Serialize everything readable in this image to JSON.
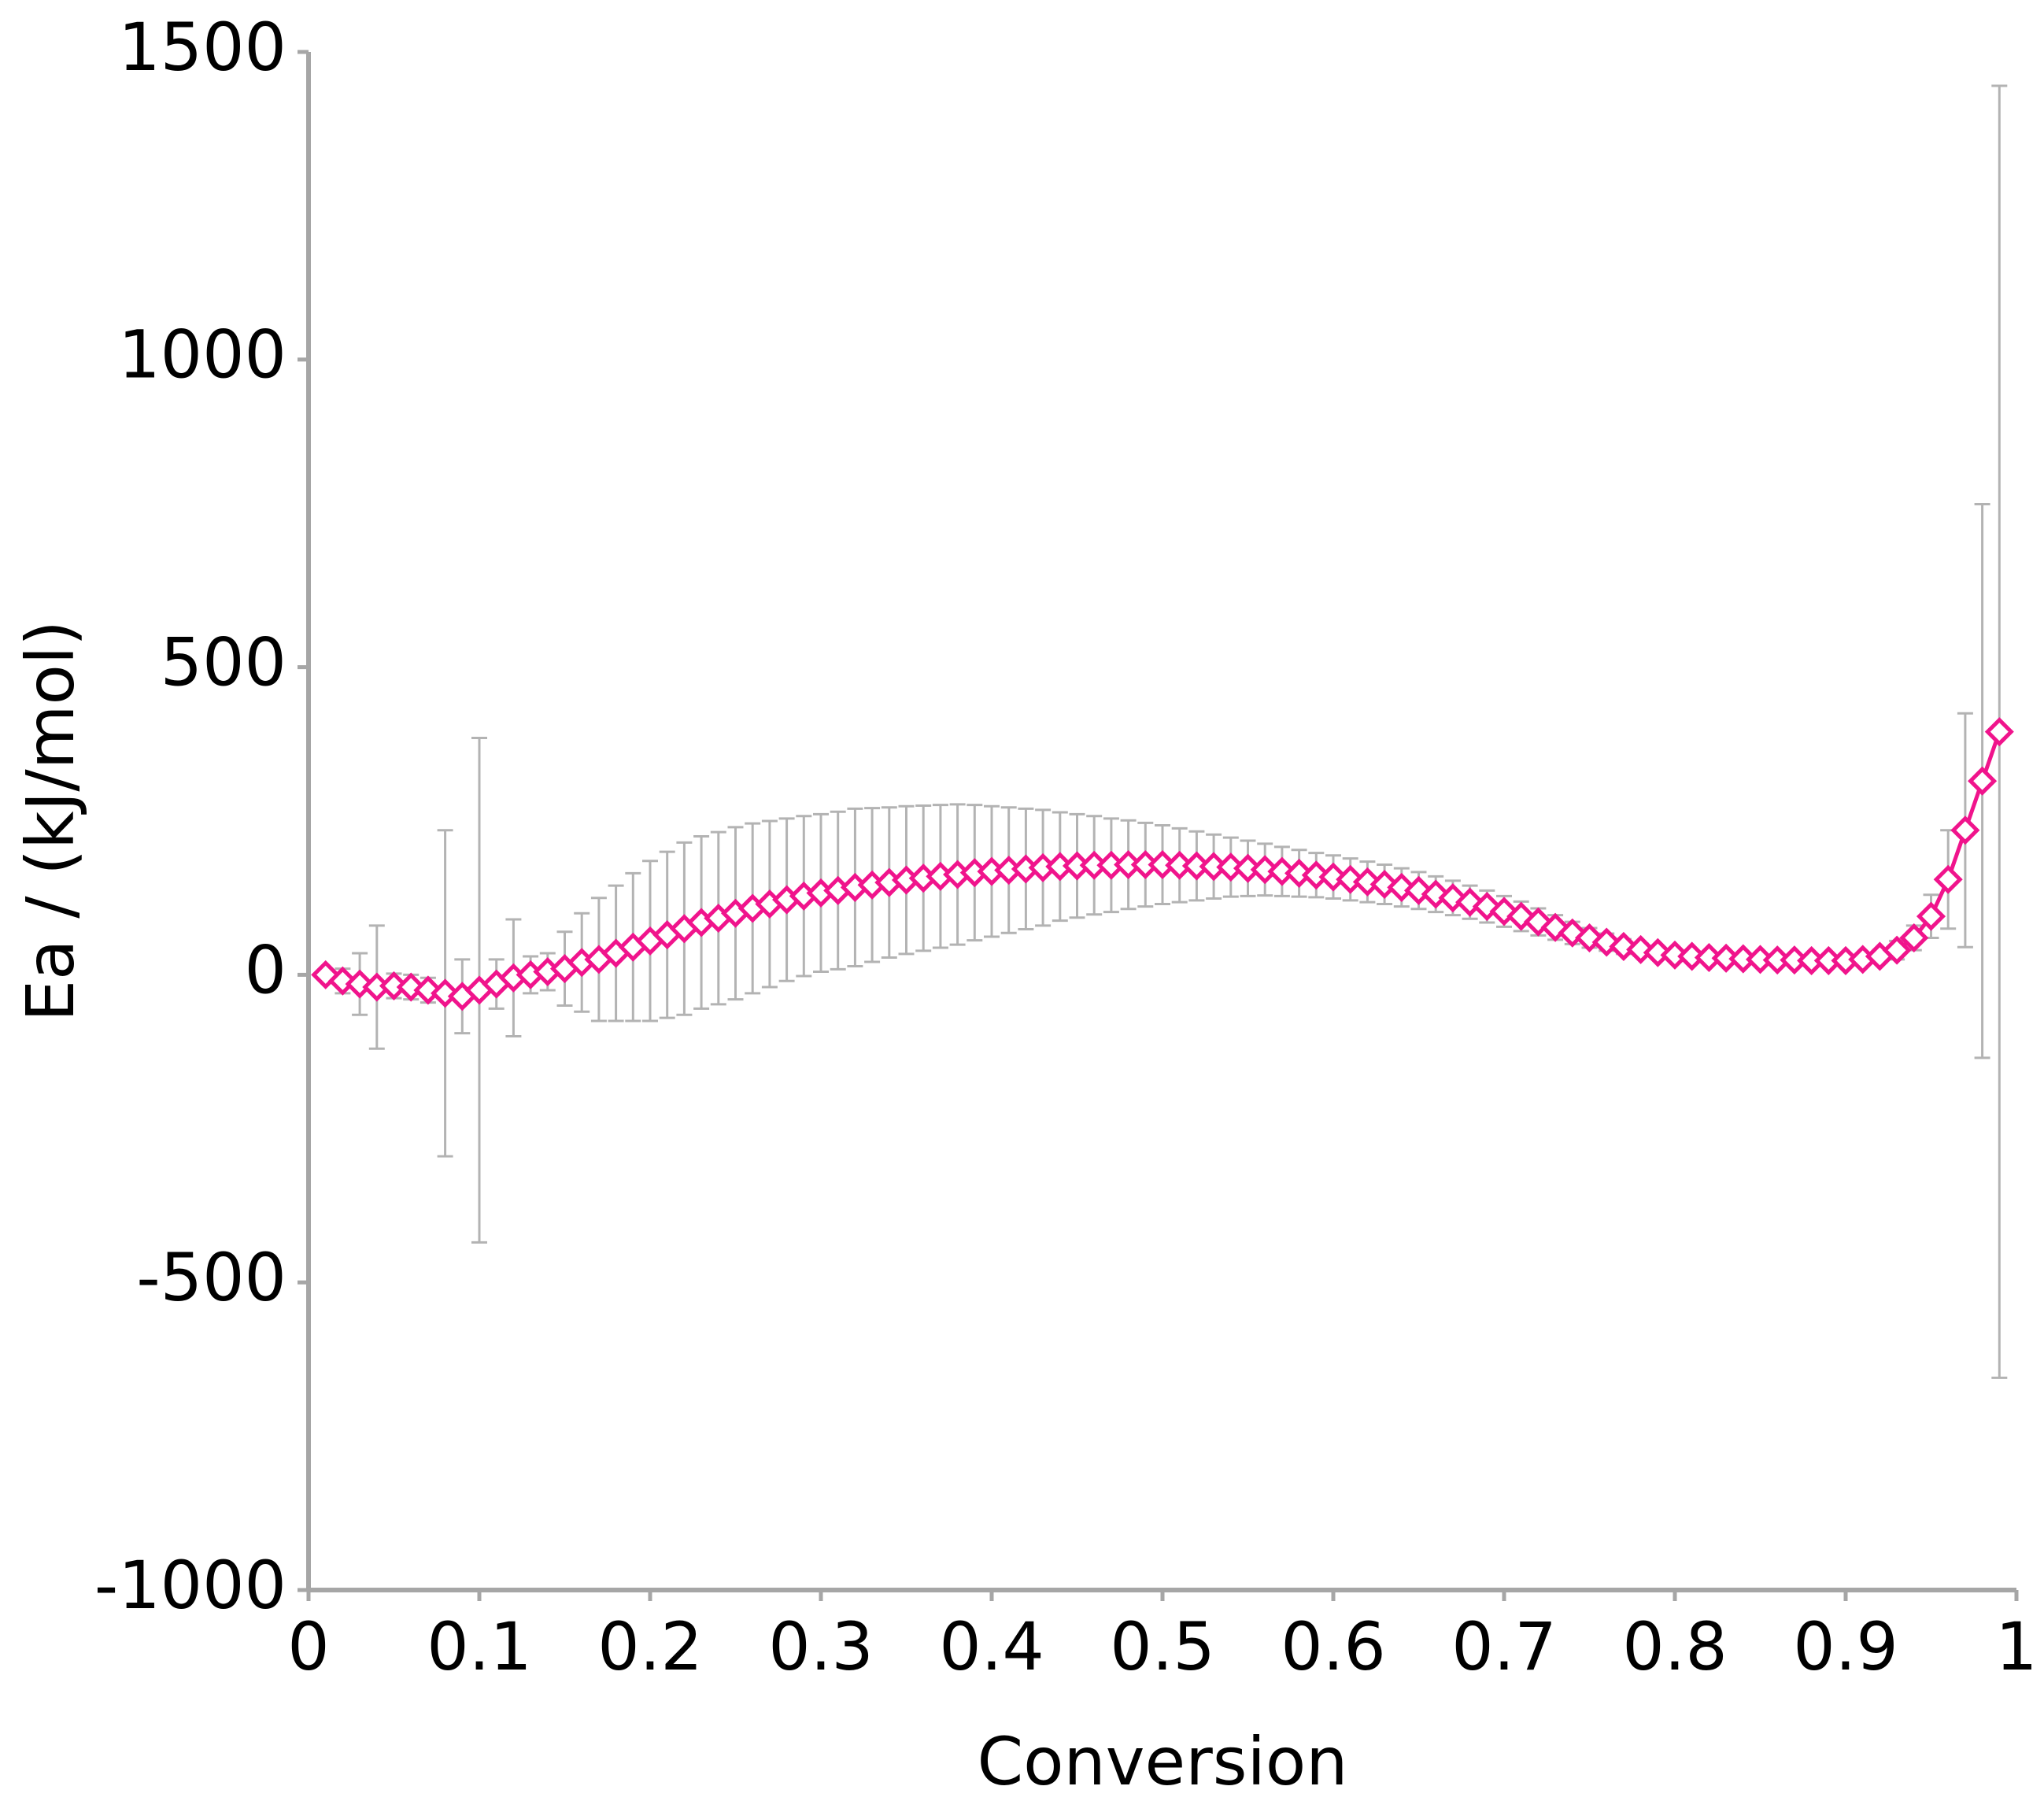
{
  "chart_data": {
    "type": "line",
    "x_label": "Conversion",
    "y_label": "Ea / (kJ/mol)",
    "x": [
      0.01,
      0.02,
      0.03,
      0.04,
      0.05,
      0.06,
      0.07,
      0.08,
      0.09,
      0.1,
      0.11,
      0.12,
      0.13,
      0.14,
      0.15,
      0.16,
      0.17,
      0.18,
      0.19,
      0.2,
      0.21,
      0.22,
      0.23,
      0.24,
      0.25,
      0.26,
      0.27,
      0.28,
      0.29,
      0.3,
      0.31,
      0.32,
      0.33,
      0.34,
      0.35,
      0.36,
      0.37,
      0.38,
      0.39,
      0.4,
      0.41,
      0.42,
      0.43,
      0.44,
      0.45,
      0.46,
      0.47,
      0.48,
      0.49,
      0.5,
      0.51,
      0.52,
      0.53,
      0.54,
      0.55,
      0.56,
      0.57,
      0.58,
      0.59,
      0.6,
      0.61,
      0.62,
      0.63,
      0.64,
      0.65,
      0.66,
      0.67,
      0.68,
      0.69,
      0.7,
      0.71,
      0.72,
      0.73,
      0.74,
      0.75,
      0.76,
      0.77,
      0.78,
      0.79,
      0.8,
      0.81,
      0.82,
      0.83,
      0.84,
      0.85,
      0.86,
      0.87,
      0.88,
      0.89,
      0.9,
      0.91,
      0.92,
      0.93,
      0.94,
      0.95,
      0.96,
      0.97,
      0.98,
      0.99
    ],
    "series": [
      {
        "color": "#f0148c",
        "error_color": "#b3b3b3",
        "values": [
          0,
          -10,
          -15,
          -20,
          -18,
          -20,
          -25,
          -30,
          -35,
          -25,
          -15,
          -5,
          0,
          5,
          10,
          20,
          25,
          35,
          45,
          55,
          65,
          75,
          85,
          92,
          100,
          108,
          115,
          122,
          128,
          133,
          137,
          142,
          146,
          150,
          154,
          157,
          160,
          163,
          166,
          168,
          170,
          172,
          174,
          176,
          177,
          178,
          178,
          179,
          179,
          179,
          178,
          177,
          176,
          175,
          173,
          171,
          168,
          165,
          162,
          159,
          155,
          151,
          147,
          142,
          137,
          131,
          125,
          118,
          111,
          103,
          95,
          86,
          77,
          68,
          60,
          53,
          46,
          41,
          36,
          32,
          30,
          28,
          27,
          26,
          25,
          24,
          24,
          23,
          23,
          23,
          25,
          30,
          40,
          60,
          95,
          155,
          235,
          315,
          395
        ],
        "errors": [
          0,
          20,
          50,
          100,
          20,
          20,
          20,
          265,
          60,
          410,
          40,
          95,
          30,
          30,
          60,
          80,
          100,
          110,
          120,
          130,
          135,
          140,
          140,
          140,
          140,
          138,
          135,
          132,
          130,
          128,
          128,
          128,
          125,
          122,
          120,
          118,
          116,
          114,
          110,
          106,
          102,
          98,
          94,
          88,
          84,
          80,
          76,
          72,
          68,
          64,
          60,
          56,
          52,
          48,
          45,
          42,
          40,
          38,
          36,
          35,
          34,
          33,
          32,
          31,
          30,
          29,
          28,
          27,
          26,
          25,
          24,
          22,
          20,
          18,
          16,
          14,
          12,
          10,
          9,
          8,
          6,
          6,
          6,
          6,
          6,
          6,
          6,
          6,
          6,
          6,
          8,
          10,
          15,
          20,
          35,
          80,
          190,
          450,
          1050
        ]
      }
    ],
    "xlim": [
      0,
      1
    ],
    "xticks": [
      0,
      0.1,
      0.2,
      0.3,
      0.4,
      0.5,
      0.6,
      0.7,
      0.8,
      0.9,
      1
    ],
    "ylim": [
      -1000,
      1500
    ],
    "yticks": [
      -1000,
      -500,
      0,
      500,
      1000,
      1500
    ],
    "grid": false
  }
}
